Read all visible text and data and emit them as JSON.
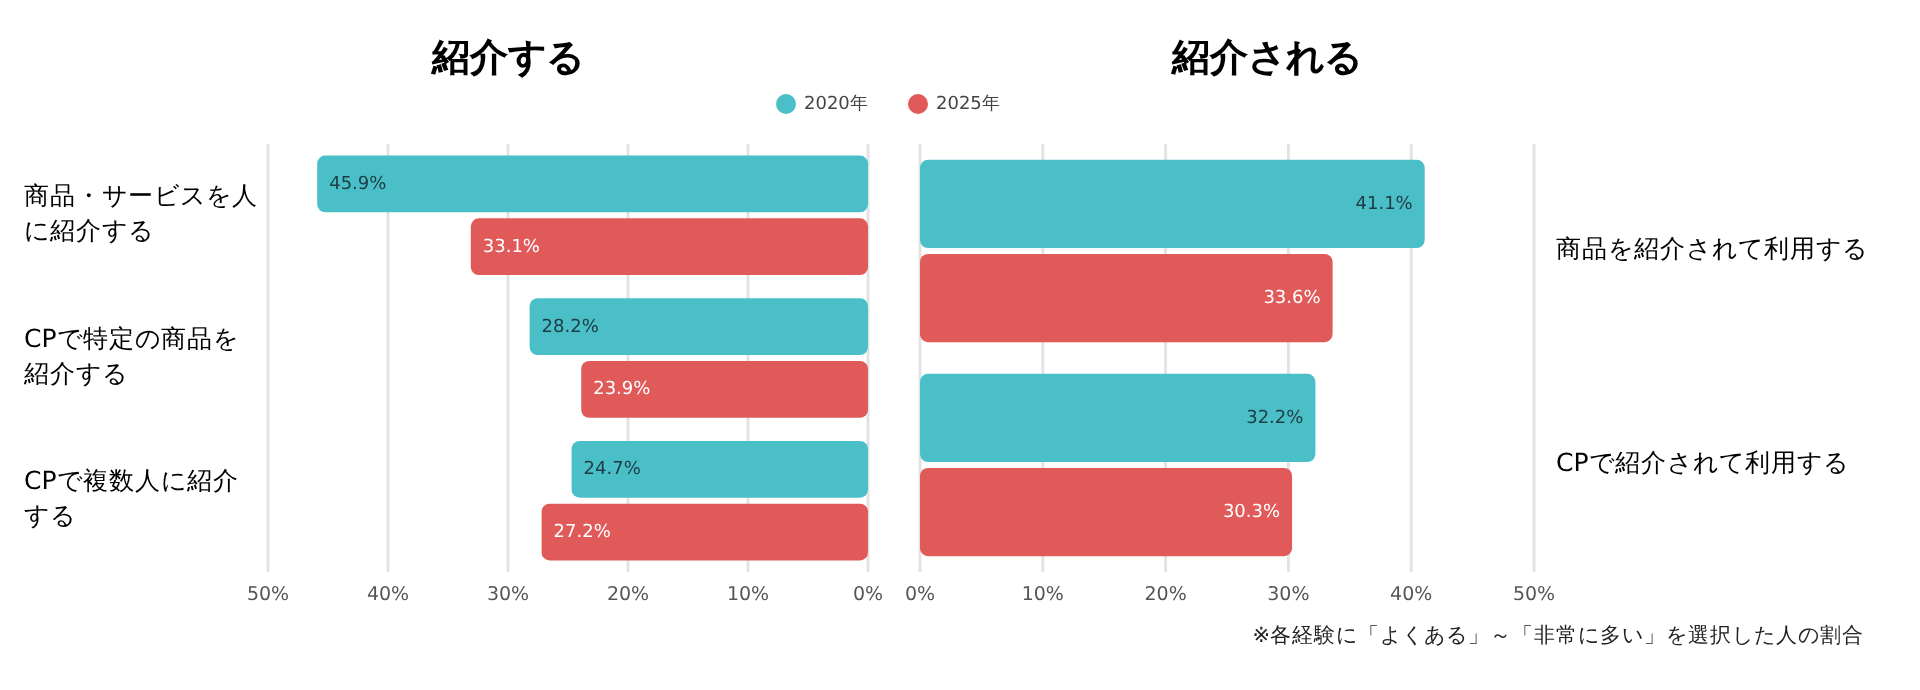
{
  "chart_data": [
    {
      "type": "bar",
      "orientation": "horizontal",
      "title": "紹介する",
      "categories": [
        "商品・サービスを人に紹介する",
        "CPで特定の商品を紹介する",
        "CPで複数人に紹介する"
      ],
      "series": [
        {
          "name": "2020年",
          "color": "#4bbfc8",
          "values": [
            45.9,
            28.2,
            24.7
          ],
          "value_labels": [
            "45.9%",
            "28.2%",
            "24.7%"
          ]
        },
        {
          "name": "2025年",
          "color": "#e05a5a",
          "values": [
            33.1,
            23.9,
            27.2
          ],
          "value_labels": [
            "33.1%",
            "23.9%",
            "27.2%"
          ]
        }
      ],
      "xlim": [
        50,
        0
      ],
      "xticks": [
        {
          "value": 50,
          "label": "50%"
        },
        {
          "value": 40,
          "label": "40%"
        },
        {
          "value": 30,
          "label": "30%"
        },
        {
          "value": 20,
          "label": "20%"
        },
        {
          "value": 10,
          "label": "10%"
        },
        {
          "value": 0,
          "label": "0%"
        }
      ],
      "grid": "x",
      "legend": "top right"
    },
    {
      "type": "bar",
      "orientation": "horizontal",
      "title": "紹介される",
      "categories": [
        "商品を紹介されて利用する",
        "CPで紹介されて利用する"
      ],
      "series": [
        {
          "color": "#4bbfc8",
          "values": [
            41.1,
            32.2
          ],
          "value_labels": [
            "41.1%",
            "32.2%"
          ]
        },
        {
          "color": "#e05a5a",
          "values": [
            33.6,
            30.3
          ],
          "value_labels": [
            "33.6%",
            "30.3%"
          ]
        }
      ],
      "xlim": [
        0,
        50
      ],
      "xticks": [
        {
          "value": 0,
          "label": "0%"
        },
        {
          "value": 10,
          "label": "10%"
        },
        {
          "value": 20,
          "label": "20%"
        },
        {
          "value": 30,
          "label": "30%"
        },
        {
          "value": 40,
          "label": "40%"
        },
        {
          "value": 50,
          "label": "50%"
        }
      ],
      "grid": "x",
      "annotations": [
        "※各経験に「よくある」～「非常に多い」を選択した人の割合"
      ]
    }
  ]
}
